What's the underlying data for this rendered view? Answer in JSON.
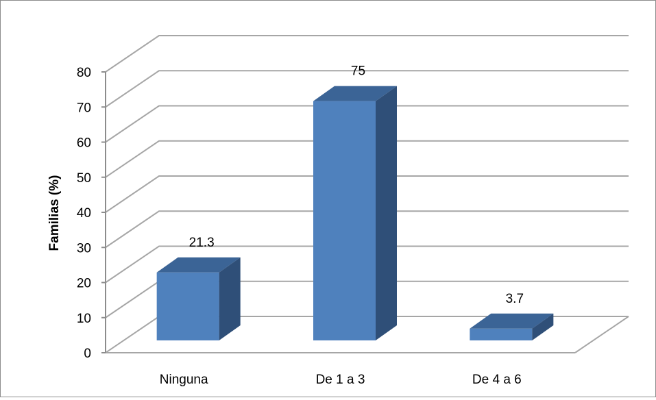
{
  "chart_data": {
    "type": "bar",
    "style": "3d-column",
    "categories": [
      "Ninguna",
      "De 1 a 3",
      "De 4 a 6"
    ],
    "values": [
      21.3,
      75,
      3.7
    ],
    "data_labels": [
      "21.3",
      "75",
      "3.7"
    ],
    "title": "",
    "xlabel": "",
    "ylabel": "Familias (%)",
    "ylim": [
      0,
      80
    ],
    "yticks": [
      0,
      10,
      20,
      30,
      40,
      50,
      60,
      70,
      80
    ],
    "grid": true,
    "legend": "none",
    "colors": {
      "bar_front": "#4f81bd",
      "bar_top": "#3b6496",
      "bar_side": "#2f4f78",
      "grid": "#a6a6a6",
      "frame": "#8c8c8c"
    }
  }
}
